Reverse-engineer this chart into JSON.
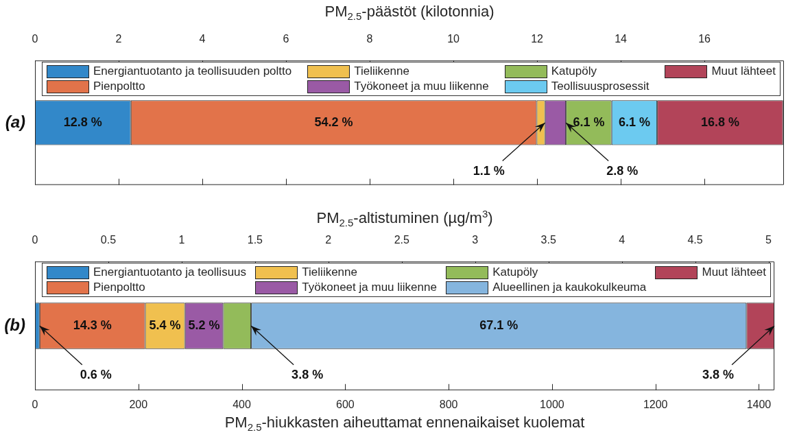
{
  "chart_data": [
    {
      "type": "bar",
      "orientation": "horizontal",
      "stacked": true,
      "xlabel": "PM$_{2.5}$-päästöt (kilotonnia)",
      "categories": [
        "(a)"
      ],
      "xlim": [
        0,
        17.9
      ],
      "xticks": [
        0,
        2,
        4,
        6,
        8,
        10,
        12,
        14,
        16
      ],
      "legend": "top",
      "series": [
        {
          "name": "Energiantuotanto ja teollisuuden poltto",
          "color": "#3288c9",
          "values": [
            2.29
          ]
        },
        {
          "name": "Pienpoltto",
          "color": "#e2734a",
          "values": [
            9.7
          ]
        },
        {
          "name": "Tieliikenne",
          "color": "#f0c04f",
          "values": [
            0.2
          ]
        },
        {
          "name": "Työkoneet ja muu liikenne",
          "color": "#9a5aa5",
          "values": [
            0.5
          ]
        },
        {
          "name": "Katupöly",
          "color": "#93bb5a",
          "values": [
            1.09
          ]
        },
        {
          "name": "Teollisuusprosessit",
          "color": "#6ccaf0",
          "values": [
            1.09
          ]
        },
        {
          "name": "Muut lähteet",
          "color": "#b24459",
          "values": [
            3.01
          ]
        }
      ],
      "annotations": [
        "12.8 %",
        "54.2 %",
        {
          "text": "1.1 %",
          "x": 12.19,
          "y": "(a)"
        },
        {
          "text": "2.8 %",
          "x": 12.69,
          "y": "(a)"
        },
        "6.1 %",
        "6.1 %",
        "16.8 %"
      ]
    },
    {
      "type": "bar",
      "orientation": "horizontal",
      "stacked": true,
      "xlabel": "PM$_{2.5}$-hiukkasten aiheuttamat ennenaikaiset kuolemat",
      "x2label": "PM$_{2.5}$-altistuminen (µg/m$^{3}$)",
      "categories": [
        "(b)"
      ],
      "xlim": [
        0,
        1430
      ],
      "xticks": [
        0,
        200,
        400,
        600,
        800,
        1000,
        1200,
        1400
      ],
      "x2lim": [
        0,
        5.04
      ],
      "x2ticks": [
        0,
        0.5,
        1,
        1.5,
        2,
        2.5,
        3,
        3.5,
        4,
        4.5,
        5
      ],
      "legend": "top",
      "series": [
        {
          "name": "Energiantuotanto ja teollisuus",
          "color": "#3288c9",
          "values": [
            9
          ]
        },
        {
          "name": "Pienpoltto",
          "color": "#e2734a",
          "values": [
            204
          ]
        },
        {
          "name": "Tieliikenne",
          "color": "#f0c04f",
          "values": [
            77
          ]
        },
        {
          "name": "Työkoneet ja muu liikenne",
          "color": "#9a5aa5",
          "values": [
            74
          ]
        },
        {
          "name": "Katupöly",
          "color": "#93bb5a",
          "values": [
            54
          ]
        },
        {
          "name": "Alueellinen ja kaukokulkeuma",
          "color": "#85b5de",
          "values": [
            958
          ]
        },
        {
          "name": "Muut lähteet",
          "color": "#b24459",
          "values": [
            54
          ]
        }
      ],
      "annotations": [
        {
          "text": "0.6 %",
          "x": 9,
          "y": "(b)"
        },
        "14.3 %",
        "5.4 %",
        "5.2 %",
        {
          "text": "3.8 %",
          "x": 418,
          "y": "(b)"
        },
        "67.1 %",
        {
          "text": "3.8 %",
          "x": 1430,
          "y": "(b)"
        }
      ]
    }
  ]
}
